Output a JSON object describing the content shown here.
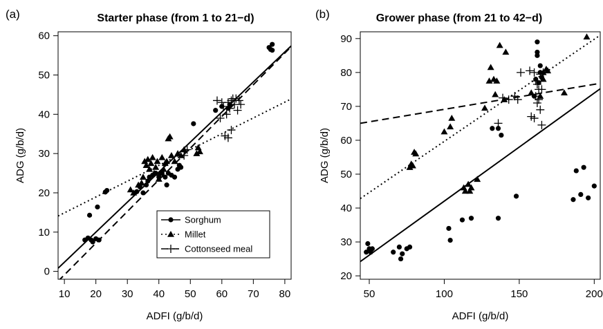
{
  "chart_data": [
    {
      "type": "scatter",
      "panel_label": "(a)",
      "title": "Starter phase (from 1 to 21−d)",
      "xlabel": "ADFI (g/b/d)",
      "ylabel": "ADG (g/b/d)",
      "xlim": [
        8,
        82
      ],
      "ylim": [
        -2,
        61
      ],
      "xticks": [
        10,
        20,
        30,
        40,
        50,
        60,
        70,
        80
      ],
      "yticks": [
        0,
        10,
        20,
        30,
        40,
        50,
        60
      ],
      "grid": false,
      "legend_position": "bottom-right",
      "series": [
        {
          "name": "Sorghum",
          "marker": "circle",
          "line": "solid",
          "fit": [
            [
              8,
              0.8
            ],
            [
              82,
              57.4
            ]
          ],
          "points": [
            [
              16.5,
              8
            ],
            [
              17.5,
              8.5
            ],
            [
              18,
              14.3
            ],
            [
              18.5,
              8
            ],
            [
              19,
              7.5
            ],
            [
              20,
              8.3
            ],
            [
              20.5,
              16.4
            ],
            [
              21,
              8
            ],
            [
              23,
              20.2
            ],
            [
              23.5,
              20.6
            ],
            [
              33,
              20.3
            ],
            [
              34,
              21.5
            ],
            [
              35,
              20
            ],
            [
              36,
              22
            ],
            [
              36.5,
              23
            ],
            [
              37,
              24
            ],
            [
              38,
              24.5
            ],
            [
              39,
              25
            ],
            [
              40,
              24
            ],
            [
              41,
              25
            ],
            [
              42,
              24
            ],
            [
              42.5,
              22
            ],
            [
              43,
              25
            ],
            [
              44,
              24.5
            ],
            [
              45,
              24
            ],
            [
              46,
              26
            ],
            [
              46.5,
              27
            ],
            [
              47,
              26.5
            ],
            [
              51,
              37.6
            ],
            [
              58,
              41
            ],
            [
              60,
              42
            ],
            [
              62,
              41.5
            ],
            [
              62.5,
              42.5
            ],
            [
              75,
              57
            ],
            [
              75.5,
              56.5
            ],
            [
              76,
              57.8
            ],
            [
              76,
              56.3
            ]
          ]
        },
        {
          "name": "Millet",
          "marker": "triangle",
          "line": "dotted",
          "fit": [
            [
              8,
              14.1
            ],
            [
              82,
              43.9
            ]
          ],
          "points": [
            [
              31,
              20.8
            ],
            [
              32,
              20
            ],
            [
              33.5,
              22
            ],
            [
              34.5,
              22.5
            ],
            [
              35,
              24
            ],
            [
              35.5,
              28
            ],
            [
              36,
              27
            ],
            [
              36.5,
              28.5
            ],
            [
              37,
              26
            ],
            [
              37.5,
              27.5
            ],
            [
              38,
              29
            ],
            [
              38.5,
              25
            ],
            [
              39,
              26.5
            ],
            [
              39.5,
              28
            ],
            [
              40,
              23.5
            ],
            [
              40.5,
              25
            ],
            [
              41,
              29
            ],
            [
              41.5,
              26
            ],
            [
              42,
              27.5
            ],
            [
              42.5,
              28
            ],
            [
              43,
              33.8
            ],
            [
              43.5,
              34.3
            ],
            [
              44,
              29.5
            ],
            [
              45,
              28
            ],
            [
              46,
              30
            ],
            [
              47,
              29.5
            ],
            [
              48,
              31
            ],
            [
              52,
              30
            ],
            [
              52.5,
              31.5
            ],
            [
              53,
              30.5
            ]
          ]
        },
        {
          "name": "Cottonseed meal",
          "marker": "plus",
          "line": "dashed",
          "fit": [
            [
              8,
              -2.5
            ],
            [
              82,
              57.2
            ]
          ],
          "points": [
            [
              48,
              29.5
            ],
            [
              49,
              31
            ],
            [
              58.5,
              43.5
            ],
            [
              59.5,
              39
            ],
            [
              60,
              43
            ],
            [
              60.5,
              42
            ],
            [
              61,
              34.5
            ],
            [
              61.5,
              40
            ],
            [
              62,
              43
            ],
            [
              62,
              34
            ],
            [
              62.5,
              41.5
            ],
            [
              63,
              43.5
            ],
            [
              63,
              36
            ],
            [
              63.5,
              44
            ],
            [
              64,
              42.5
            ],
            [
              64.5,
              44
            ],
            [
              65,
              41
            ],
            [
              65.5,
              43.5
            ],
            [
              66,
              42.5
            ]
          ]
        }
      ]
    },
    {
      "type": "scatter",
      "panel_label": "(b)",
      "title": "Grower phase (from 21 to 42−d)",
      "xlabel": "ADFI (g/b/d)",
      "ylabel": "ADG (g/b/d)",
      "xlim": [
        44,
        204
      ],
      "ylim": [
        19,
        92
      ],
      "xticks": [
        50,
        100,
        150,
        200
      ],
      "yticks": [
        20,
        30,
        40,
        50,
        60,
        70,
        80,
        90
      ],
      "grid": false,
      "legend_position": "none",
      "series": [
        {
          "name": "Sorghum",
          "marker": "circle",
          "line": "solid",
          "fit": [
            [
              44,
              24.2
            ],
            [
              204,
              75.2
            ]
          ],
          "points": [
            [
              48,
              27
            ],
            [
              49,
              29.5
            ],
            [
              50,
              28
            ],
            [
              51,
              27
            ],
            [
              52,
              28
            ],
            [
              66,
              27
            ],
            [
              70,
              28.5
            ],
            [
              71,
              25
            ],
            [
              72,
              26.5
            ],
            [
              75,
              28
            ],
            [
              77,
              28.5
            ],
            [
              103,
              34
            ],
            [
              104,
              30.5
            ],
            [
              112,
              36.5
            ],
            [
              118,
              37
            ],
            [
              136,
              37
            ],
            [
              148,
              43.5
            ],
            [
              132,
              63.5
            ],
            [
              136,
              63.5
            ],
            [
              138,
              61.5
            ],
            [
              160,
              73
            ],
            [
              161,
              78
            ],
            [
              162,
              85
            ],
            [
              162,
              86
            ],
            [
              162,
              89
            ],
            [
              163,
              77
            ],
            [
              164,
              80
            ],
            [
              164,
              82
            ],
            [
              165,
              78.5
            ],
            [
              186,
              42.5
            ],
            [
              188,
              51
            ],
            [
              191,
              44
            ],
            [
              193,
              52
            ],
            [
              196,
              43
            ],
            [
              200,
              46.5
            ]
          ]
        },
        {
          "name": "Millet",
          "marker": "triangle",
          "line": "dotted",
          "fit": [
            [
              44,
              42.8
            ],
            [
              204,
              91.0
            ]
          ],
          "points": [
            [
              77,
              52
            ],
            [
              78,
              53
            ],
            [
              79,
              52.5
            ],
            [
              80,
              56.5
            ],
            [
              81,
              56
            ],
            [
              100,
              62.5
            ],
            [
              104,
              64
            ],
            [
              105,
              66.5
            ],
            [
              113,
              46
            ],
            [
              114,
              45
            ],
            [
              116,
              47
            ],
            [
              117,
              45
            ],
            [
              118,
              46
            ],
            [
              122,
              48.5
            ],
            [
              127,
              69.5
            ],
            [
              130,
              77.5
            ],
            [
              131,
              81.5
            ],
            [
              133,
              78
            ],
            [
              134,
              73.5
            ],
            [
              135,
              77.5
            ],
            [
              137,
              88
            ],
            [
              140,
              72
            ],
            [
              141,
              86
            ],
            [
              158,
              74
            ],
            [
              164,
              73
            ],
            [
              166,
              78
            ],
            [
              166,
              80
            ],
            [
              168,
              81
            ],
            [
              169,
              80.5
            ],
            [
              180,
              74
            ],
            [
              195,
              90.5
            ]
          ]
        },
        {
          "name": "Cottonseed meal",
          "marker": "plus",
          "line": "dashed",
          "fit": [
            [
              44,
              65.0
            ],
            [
              204,
              76.8
            ]
          ],
          "points": [
            [
              136,
              65
            ],
            [
              139,
              72.5
            ],
            [
              143,
              72
            ],
            [
              147,
              73
            ],
            [
              149,
              72
            ],
            [
              151,
              80
            ],
            [
              157,
              80.5
            ],
            [
              158,
              67
            ],
            [
              160,
              66.5
            ],
            [
              160,
              80
            ],
            [
              161,
              73
            ],
            [
              161,
              77.5
            ],
            [
              162,
              76.5
            ],
            [
              162,
              71
            ],
            [
              163,
              75
            ],
            [
              163,
              72
            ],
            [
              164,
              79.5
            ],
            [
              164,
              69
            ],
            [
              165,
              75
            ],
            [
              165,
              64.5
            ],
            [
              166,
              80
            ]
          ]
        }
      ]
    }
  ]
}
